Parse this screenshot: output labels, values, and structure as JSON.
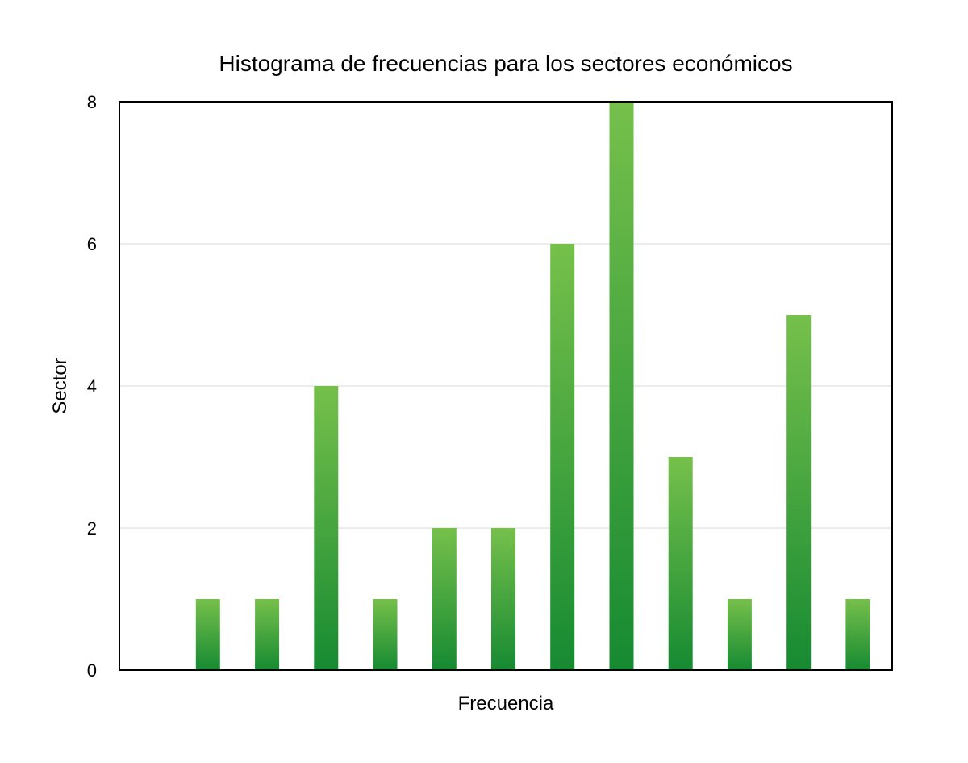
{
  "chart_data": {
    "type": "bar",
    "title": "Histograma de frecuencias para los sectores económicos",
    "xlabel": "Frecuencia",
    "ylabel": "Sector",
    "ylim": [
      0,
      8
    ],
    "yticks": [
      0,
      2,
      4,
      6,
      8
    ],
    "categories": [
      "",
      "",
      "",
      "",
      "",
      "",
      "",
      "",
      "",
      "",
      "",
      "",
      ""
    ],
    "values": [
      0,
      1,
      1,
      4,
      1,
      2,
      2,
      6,
      8,
      3,
      1,
      5,
      1
    ],
    "grid": true,
    "legend": "none",
    "colors": {
      "bar_top": "#76c04b",
      "bar_bottom": "#168a32",
      "grid": "#d9d9d9",
      "axis": "#000000"
    }
  }
}
